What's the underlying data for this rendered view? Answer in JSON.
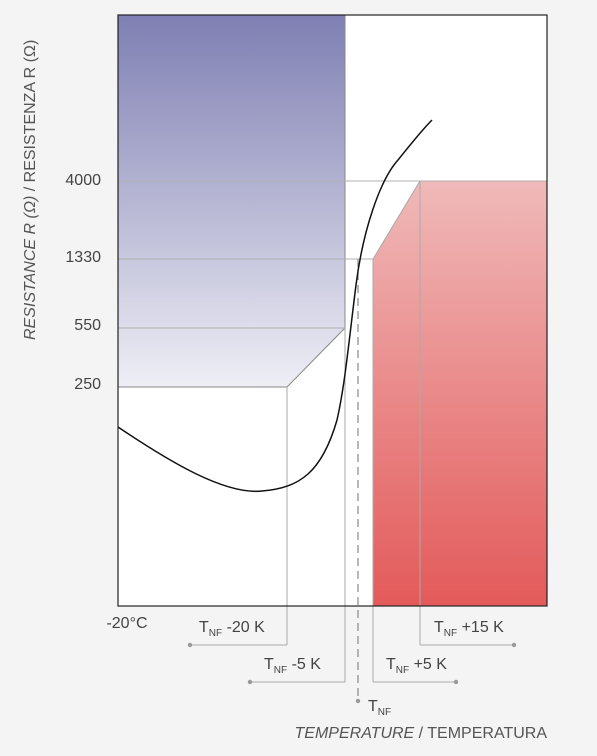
{
  "chart_data": {
    "type": "line",
    "ylabel_italic": "RESISTANCE R (Ω)",
    "ylabel_plain": " / RESISTENZA R (Ω)",
    "xlabel_italic": "TEMPERATURE",
    "xlabel_plain": " / TEMPERATURA",
    "x_start_label": "-20°C",
    "y_ticks": [
      "4000",
      "1330",
      "550",
      "250"
    ],
    "markers": [
      {
        "base": "T",
        "sub": "NF",
        "suffix": " -20 K"
      },
      {
        "base": "T",
        "sub": "NF",
        "suffix": " -5 K"
      },
      {
        "base": "T",
        "sub": "NF",
        "suffix": " +5 K"
      },
      {
        "base": "T",
        "sub": "NF",
        "suffix": " +15 K"
      },
      {
        "base": "T",
        "sub": "NF",
        "suffix": ""
      }
    ],
    "regions": [
      {
        "name": "low-limit-zone",
        "color_top": "#7f7fb3",
        "color_bottom": "#eeeef5"
      },
      {
        "name": "high-limit-zone",
        "color_top": "#f0b9b9",
        "color_bottom": "#e35a5a"
      }
    ],
    "grid": false
  }
}
